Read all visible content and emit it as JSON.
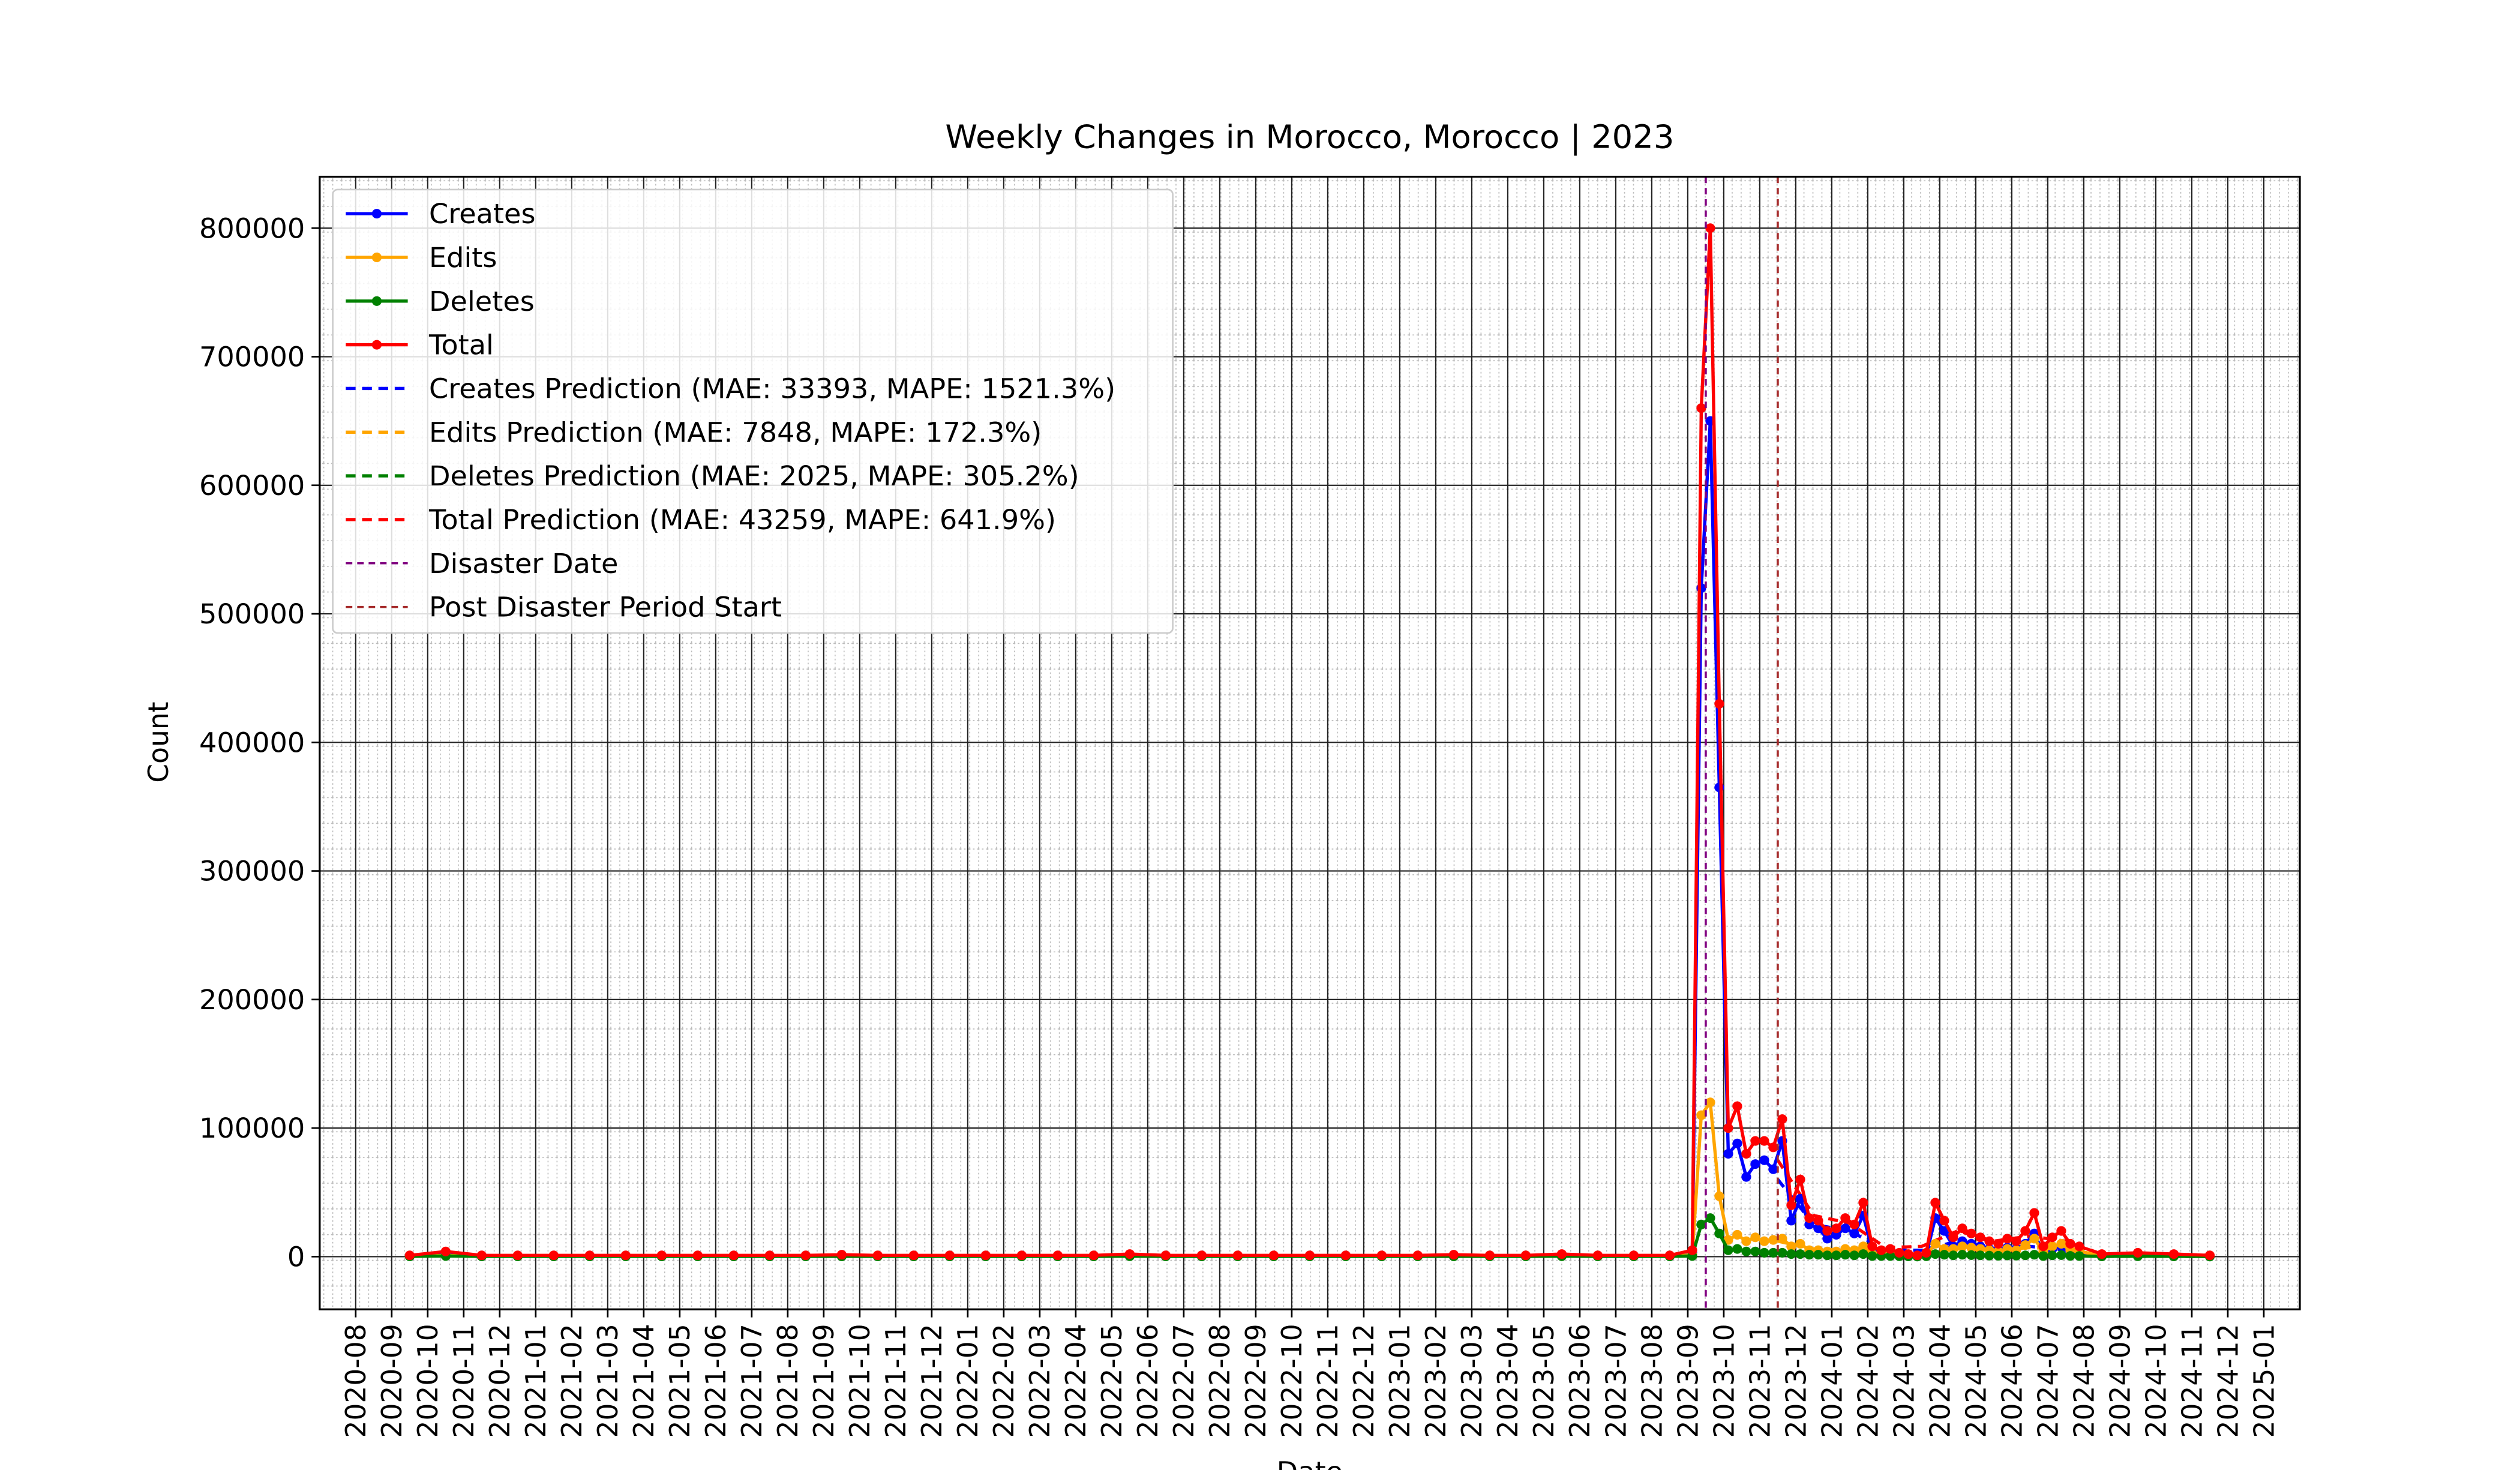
{
  "chart_data": {
    "type": "line",
    "title": "Weekly Changes in Morocco, Morocco | 2023",
    "x_label": "Date",
    "y_label": "Count",
    "x": [
      "2020-09",
      "2020-10",
      "2020-11",
      "2020-12",
      "2021-01",
      "2021-02",
      "2021-03",
      "2021-04",
      "2021-05",
      "2021-06",
      "2021-07",
      "2021-08",
      "2021-09",
      "2021-10",
      "2021-11",
      "2021-12",
      "2022-01",
      "2022-02",
      "2022-03",
      "2022-04",
      "2022-05",
      "2022-06",
      "2022-07",
      "2022-08",
      "2022-09",
      "2022-10",
      "2022-11",
      "2022-12",
      "2023-01",
      "2023-02",
      "2023-03",
      "2023-04",
      "2023-05",
      "2023-06",
      "2023-07",
      "2023-08",
      "2023-09",
      "2023-09",
      "2023-09",
      "2023-09",
      "2023-10",
      "2023-10",
      "2023-10",
      "2023-10",
      "2023-11",
      "2023-11",
      "2023-11",
      "2023-11",
      "2023-12",
      "2023-12",
      "2023-12",
      "2023-12",
      "2024-01",
      "2024-01",
      "2024-01",
      "2024-01",
      "2024-02",
      "2024-02",
      "2024-02",
      "2024-02",
      "2024-03",
      "2024-03",
      "2024-03",
      "2024-03",
      "2024-04",
      "2024-04",
      "2024-04",
      "2024-04",
      "2024-05",
      "2024-05",
      "2024-05",
      "2024-05",
      "2024-06",
      "2024-06",
      "2024-06",
      "2024-06",
      "2024-07",
      "2024-07",
      "2024-07",
      "2024-07",
      "2024-08",
      "2024-09",
      "2024-10",
      "2024-11"
    ],
    "series": [
      {
        "name": "Creates",
        "color": "blue",
        "style": "solid",
        "values": [
          500,
          2500,
          500,
          500,
          500,
          500,
          500,
          500,
          500,
          500,
          500,
          500,
          800,
          500,
          500,
          500,
          500,
          500,
          500,
          500,
          1000,
          500,
          500,
          500,
          500,
          500,
          500,
          500,
          500,
          800,
          500,
          500,
          1000,
          500,
          500,
          500,
          3000,
          520000,
          650000,
          365000,
          80000,
          88000,
          62000,
          72000,
          75000,
          68000,
          90000,
          28000,
          45000,
          25000,
          22000,
          14000,
          17000,
          22000,
          18000,
          32000,
          5000,
          3000,
          3000,
          1500,
          1000,
          500,
          1500,
          30000,
          20000,
          8000,
          12000,
          10000,
          8000,
          6000,
          5000,
          7000,
          6000,
          10000,
          18000,
          3000,
          6000,
          8000,
          4000,
          3000,
          1000,
          1500,
          1000,
          500
        ]
      },
      {
        "name": "Edits",
        "color": "orange",
        "style": "solid",
        "values": [
          300,
          1000,
          300,
          300,
          300,
          300,
          300,
          300,
          300,
          300,
          300,
          300,
          500,
          300,
          300,
          300,
          300,
          300,
          300,
          300,
          700,
          300,
          300,
          300,
          300,
          300,
          300,
          300,
          300,
          500,
          300,
          300,
          700,
          300,
          300,
          300,
          1500,
          110000,
          120000,
          47000,
          13000,
          17000,
          12000,
          15000,
          12000,
          13000,
          14000,
          8000,
          10000,
          5000,
          5000,
          4000,
          4000,
          6000,
          5000,
          8000,
          2000,
          1500,
          2000,
          1000,
          800,
          400,
          1200,
          10000,
          6000,
          6000,
          8000,
          7000,
          6000,
          5000,
          4000,
          6000,
          5000,
          9000,
          14000,
          4000,
          8000,
          10000,
          5000,
          4000,
          800,
          1200,
          800,
          400
        ]
      },
      {
        "name": "Deletes",
        "color": "green",
        "style": "solid",
        "values": [
          200,
          500,
          200,
          200,
          200,
          200,
          200,
          200,
          200,
          200,
          200,
          200,
          200,
          200,
          200,
          200,
          200,
          200,
          200,
          200,
          300,
          200,
          200,
          200,
          200,
          200,
          200,
          200,
          200,
          200,
          200,
          200,
          300,
          200,
          200,
          200,
          500,
          25000,
          30000,
          18000,
          5000,
          6000,
          4000,
          4000,
          3000,
          3000,
          3000,
          2000,
          2000,
          1500,
          1500,
          1000,
          1000,
          1500,
          1000,
          2000,
          500,
          500,
          500,
          300,
          200,
          100,
          300,
          2000,
          1500,
          1000,
          1500,
          1200,
          1000,
          800,
          700,
          900,
          800,
          1000,
          1500,
          500,
          1000,
          1200,
          600,
          500,
          200,
          300,
          200,
          100
        ]
      },
      {
        "name": "Total",
        "color": "red",
        "style": "solid",
        "values": [
          1000,
          4000,
          1000,
          1000,
          1000,
          1000,
          1000,
          1000,
          1000,
          1000,
          1000,
          1000,
          1500,
          1000,
          1000,
          1000,
          1000,
          1000,
          1000,
          1000,
          2000,
          1000,
          1000,
          1000,
          1000,
          1000,
          1000,
          1000,
          1000,
          1500,
          1000,
          1000,
          2000,
          1000,
          1000,
          1000,
          5000,
          660000,
          800000,
          430000,
          100000,
          117000,
          80000,
          90000,
          90000,
          85000,
          107000,
          40000,
          60000,
          30000,
          28000,
          20000,
          22000,
          30000,
          25000,
          42000,
          8000,
          5000,
          6000,
          3000,
          2000,
          1000,
          3000,
          42000,
          28000,
          15000,
          22000,
          18000,
          15000,
          12000,
          10000,
          14000,
          12000,
          20000,
          34000,
          8000,
          15000,
          20000,
          10000,
          8000,
          2000,
          3000,
          2000,
          1000
        ]
      },
      {
        "name": "Creates Prediction (MAE: 33393, MAPE: 1521.3%)",
        "color": "blue",
        "style": "dashed",
        "x": [
          "2023-11",
          "2023-12",
          "2024-01",
          "2024-02",
          "2024-03",
          "2024-04",
          "2024-05",
          "2024-06",
          "2024-07",
          "2024-08",
          "2024-09",
          "2024-10",
          "2024-11"
        ],
        "values": [
          60000,
          25000,
          20000,
          5000,
          5000,
          12000,
          6000,
          8000,
          5000,
          1000,
          1000,
          1000,
          500
        ]
      },
      {
        "name": "Edits Prediction (MAE: 7848, MAPE: 172.3%)",
        "color": "orange",
        "style": "dashed",
        "x": [
          "2023-11",
          "2023-12",
          "2024-01",
          "2024-02",
          "2024-03",
          "2024-04",
          "2024-05",
          "2024-06",
          "2024-07",
          "2024-08",
          "2024-09",
          "2024-10",
          "2024-11"
        ],
        "values": [
          12000,
          6000,
          5000,
          2000,
          2000,
          6000,
          5000,
          7000,
          6000,
          1000,
          1000,
          800,
          400
        ]
      },
      {
        "name": "Deletes Prediction (MAE: 2025, MAPE: 305.2%)",
        "color": "green",
        "style": "dashed",
        "x": [
          "2023-11",
          "2023-12",
          "2024-01",
          "2024-02",
          "2024-03",
          "2024-04",
          "2024-05",
          "2024-06",
          "2024-07",
          "2024-08",
          "2024-09",
          "2024-10",
          "2024-11"
        ],
        "values": [
          3000,
          1500,
          1200,
          500,
          500,
          1200,
          800,
          900,
          800,
          200,
          200,
          200,
          100
        ]
      },
      {
        "name": "Total Prediction (MAE: 43259, MAPE: 641.9%)",
        "color": "red",
        "style": "dashed",
        "x": [
          "2023-11",
          "2023-12",
          "2024-01",
          "2024-02",
          "2024-03",
          "2024-04",
          "2024-05",
          "2024-06",
          "2024-07",
          "2024-08",
          "2024-09",
          "2024-10",
          "2024-11"
        ],
        "values": [
          75000,
          32000,
          26000,
          7000,
          8000,
          20000,
          12000,
          16000,
          12000,
          2000,
          2000,
          2000,
          1000
        ]
      }
    ],
    "vlines": [
      {
        "name": "Disaster Date",
        "x": "2023-09",
        "color": "purple"
      },
      {
        "name": "Post Disaster Period Start",
        "x": "2023-11",
        "color": "brown"
      }
    ],
    "xlim": [
      "2020-07",
      "2025-02"
    ],
    "xticks": [
      "2020-08",
      "2020-09",
      "2020-10",
      "2020-11",
      "2020-12",
      "2021-01",
      "2021-02",
      "2021-03",
      "2021-04",
      "2021-05",
      "2021-06",
      "2021-07",
      "2021-08",
      "2021-09",
      "2021-10",
      "2021-11",
      "2021-12",
      "2022-01",
      "2022-02",
      "2022-03",
      "2022-04",
      "2022-05",
      "2022-06",
      "2022-07",
      "2022-08",
      "2022-09",
      "2022-10",
      "2022-11",
      "2022-12",
      "2023-01",
      "2023-02",
      "2023-03",
      "2023-04",
      "2023-05",
      "2023-06",
      "2023-07",
      "2023-08",
      "2023-09",
      "2023-10",
      "2023-11",
      "2023-12",
      "2024-01",
      "2024-02",
      "2024-03",
      "2024-04",
      "2024-05",
      "2024-06",
      "2024-07",
      "2024-08",
      "2024-09",
      "2024-10",
      "2024-11",
      "2024-12",
      "2025-01"
    ],
    "ylim": [
      -41000,
      840000
    ],
    "yticks": [
      0,
      100000,
      200000,
      300000,
      400000,
      500000,
      600000,
      700000,
      800000
    ],
    "grid": true,
    "minor_grid": true,
    "legend": "upper left"
  }
}
